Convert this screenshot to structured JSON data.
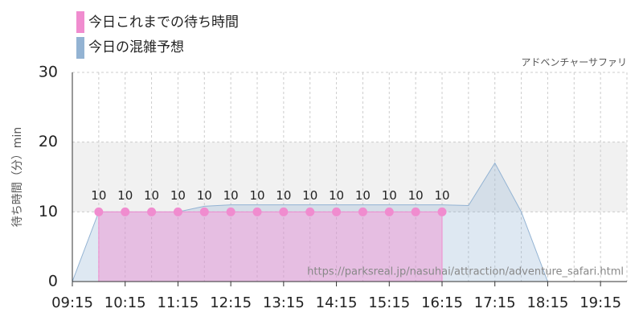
{
  "chart_data": {
    "type": "line",
    "legend": [
      "今日これまでの待ち時間",
      "今日の混雑予想"
    ],
    "subtitle": "アドベンチャーサファリ",
    "y_label": "待ち時間（分）min",
    "watermark": "https://parksreal.jp/nasuhai/attraction/adventure_safari.html",
    "xlim": [
      "09:15",
      "19:45"
    ],
    "xticks": [
      "09:15",
      "10:15",
      "11:15",
      "12:15",
      "13:15",
      "14:15",
      "15:15",
      "16:15",
      "17:15",
      "18:15",
      "19:15"
    ],
    "ylim": [
      0,
      30
    ],
    "yticks": [
      0,
      10,
      20,
      30
    ],
    "grid": true,
    "shaded_band": [
      10,
      20
    ],
    "series": [
      {
        "name": "今日これまでの待ち時間",
        "color": "#f08ccf",
        "x": [
          "09:45",
          "10:15",
          "10:45",
          "11:15",
          "11:45",
          "12:15",
          "12:45",
          "13:15",
          "13:45",
          "14:15",
          "14:45",
          "15:15",
          "15:45",
          "16:15"
        ],
        "values": [
          10,
          10,
          10,
          10,
          10,
          10,
          10,
          10,
          10,
          10,
          10,
          10,
          10,
          10
        ]
      },
      {
        "name": "今日の混雑予想",
        "color": "#93b3d3",
        "x": [
          "09:15",
          "09:45",
          "10:15",
          "10:45",
          "11:15",
          "11:45",
          "12:15",
          "12:45",
          "13:15",
          "13:45",
          "14:15",
          "14:45",
          "15:15",
          "15:45",
          "16:15",
          "16:45",
          "17:15",
          "17:45",
          "18:15",
          "18:45",
          "19:15",
          "19:45"
        ],
        "values": [
          0,
          10,
          10,
          10,
          10,
          10.8,
          11,
          11,
          11,
          11,
          11,
          11,
          11,
          11,
          11,
          10.9,
          17,
          10,
          0,
          0,
          0,
          0
        ]
      }
    ]
  }
}
